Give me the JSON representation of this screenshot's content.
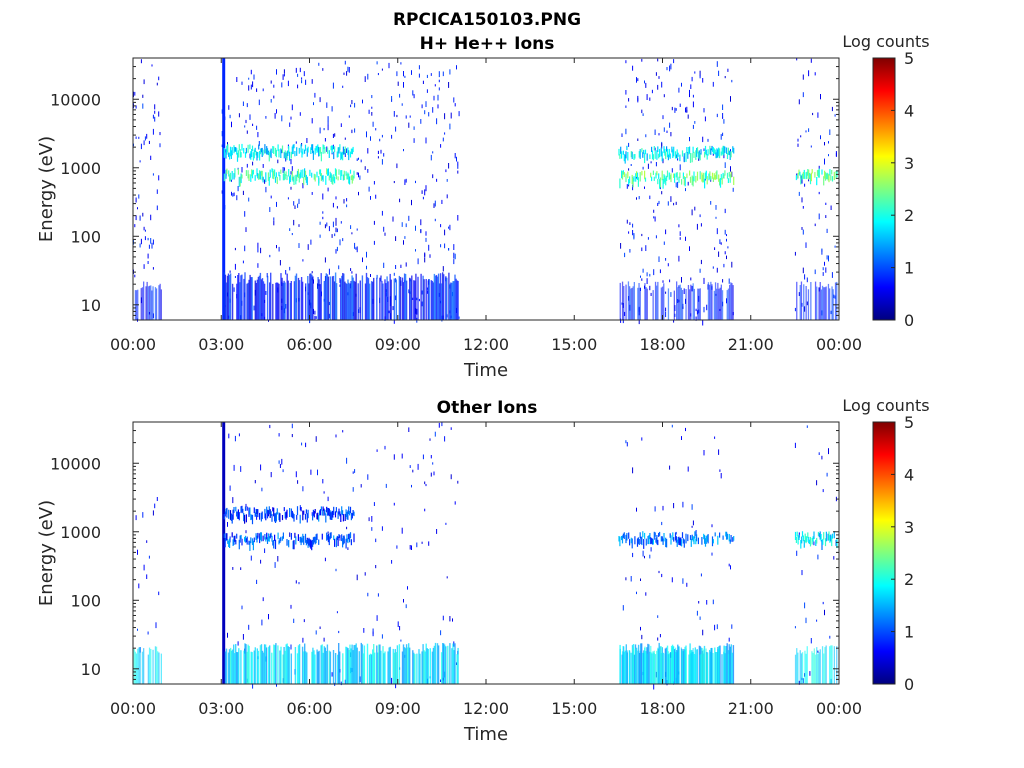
{
  "figure": {
    "title_line1": "RPCICA150103.PNG"
  },
  "colormap": {
    "name": "jet",
    "stops": [
      "#00007f",
      "#0000ff",
      "#007fff",
      "#00ffff",
      "#7fff7f",
      "#ffff00",
      "#ff7f00",
      "#ff0000",
      "#7f0000"
    ]
  },
  "chart_data": [
    {
      "type": "heatmap",
      "title": "H+ He++ Ions",
      "xlabel": "Time",
      "ylabel": "Energy (eV)",
      "xscale": "time",
      "yscale": "log",
      "xlim": [
        "00:00",
        "24:00"
      ],
      "ylim": [
        6,
        40000
      ],
      "xticks": [
        "00:00",
        "03:00",
        "06:00",
        "09:00",
        "12:00",
        "15:00",
        "18:00",
        "21:00",
        "00:00"
      ],
      "yticks": [
        "10",
        "100",
        "1000",
        "10000"
      ],
      "colorbar": {
        "label": "Log counts",
        "range": [
          0,
          5
        ],
        "ticks": [
          "0",
          "1",
          "2",
          "3",
          "4",
          "5"
        ]
      },
      "data_gaps": [
        [
          "00:55",
          "03:00"
        ],
        [
          "11:05",
          "16:30"
        ],
        [
          "20:25",
          "22:30"
        ]
      ],
      "features": [
        {
          "name": "spike",
          "time": "03:05",
          "energy_min": 6,
          "energy_max": 40000,
          "log_counts": 0.8
        },
        {
          "name": "band",
          "time_start": "03:05",
          "time_end": "07:30",
          "energy": 1700,
          "log_counts": 1.9
        },
        {
          "name": "band",
          "time_start": "03:05",
          "time_end": "07:30",
          "energy": 750,
          "log_counts": 2.2
        },
        {
          "name": "band",
          "time_start": "16:30",
          "time_end": "20:25",
          "energy": 1600,
          "log_counts": 1.9
        },
        {
          "name": "band",
          "time_start": "16:30",
          "time_end": "20:25",
          "energy": 700,
          "log_counts": 2.4
        },
        {
          "name": "band",
          "time_start": "22:30",
          "time_end": "23:55",
          "energy": 750,
          "log_counts": 2.4
        },
        {
          "name": "low-energy",
          "time_start": "03:05",
          "time_end": "11:05",
          "energy_min": 6,
          "energy_max": 25,
          "log_counts": 0.9
        }
      ]
    },
    {
      "type": "heatmap",
      "title": "Other Ions",
      "xlabel": "Time",
      "ylabel": "Energy (eV)",
      "xscale": "time",
      "yscale": "log",
      "xlim": [
        "00:00",
        "24:00"
      ],
      "ylim": [
        6,
        40000
      ],
      "xticks": [
        "00:00",
        "03:00",
        "06:00",
        "09:00",
        "12:00",
        "15:00",
        "18:00",
        "21:00",
        "00:00"
      ],
      "yticks": [
        "10",
        "100",
        "1000",
        "10000"
      ],
      "colorbar": {
        "label": "Log counts",
        "range": [
          0,
          5
        ],
        "ticks": [
          "0",
          "1",
          "2",
          "3",
          "4",
          "5"
        ]
      },
      "data_gaps": [
        [
          "00:55",
          "03:00"
        ],
        [
          "11:05",
          "16:30"
        ],
        [
          "20:25",
          "22:30"
        ]
      ],
      "features": [
        {
          "name": "spike",
          "time": "03:05",
          "energy_min": 6,
          "energy_max": 40000,
          "log_counts": 0.3
        },
        {
          "name": "band",
          "time_start": "03:05",
          "time_end": "07:30",
          "energy": 1800,
          "log_counts": 1.0
        },
        {
          "name": "band",
          "time_start": "03:05",
          "time_end": "07:30",
          "energy": 750,
          "log_counts": 1.1
        },
        {
          "name": "band",
          "time_start": "16:30",
          "time_end": "20:25",
          "energy": 780,
          "log_counts": 1.3
        },
        {
          "name": "band",
          "time_start": "22:30",
          "time_end": "23:55",
          "energy": 780,
          "log_counts": 1.8
        },
        {
          "name": "low-energy",
          "time_start": "03:05",
          "time_end": "11:05",
          "energy_min": 6,
          "energy_max": 20,
          "log_counts": 1.8
        },
        {
          "name": "low-energy",
          "time_start": "16:30",
          "time_end": "20:25",
          "energy_min": 6,
          "energy_max": 20,
          "log_counts": 1.7
        }
      ]
    }
  ]
}
